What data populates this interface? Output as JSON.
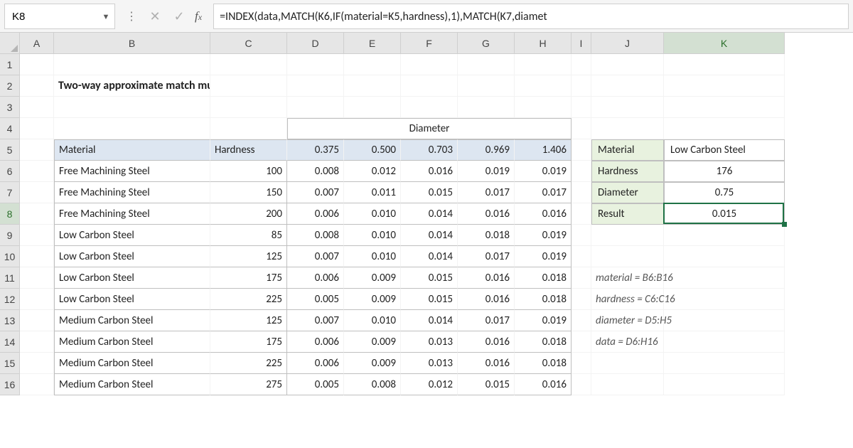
{
  "namebox": "K8",
  "formula": "=INDEX(data,MATCH(K6,IF(material=K5,hardness),1),MATCH(K7,diamet",
  "columns": [
    "A",
    "B",
    "C",
    "D",
    "E",
    "F",
    "G",
    "H",
    "I",
    "J",
    "K"
  ],
  "rows": [
    "1",
    "2",
    "3",
    "4",
    "5",
    "6",
    "7",
    "8",
    "9",
    "10",
    "11",
    "12",
    "13",
    "14",
    "15",
    "16"
  ],
  "active_row": "8",
  "active_col": "K",
  "title": "Two-way approximate match multiple criteria",
  "diam_header": "Diameter",
  "table_headers": {
    "material": "Material",
    "hardness": "Hardness"
  },
  "diameters": [
    "0.375",
    "0.500",
    "0.703",
    "0.969",
    "1.406"
  ],
  "data_rows": [
    {
      "m": "Free Machining Steel",
      "h": "100",
      "v": [
        "0.008",
        "0.012",
        "0.016",
        "0.019",
        "0.019"
      ]
    },
    {
      "m": "Free Machining Steel",
      "h": "150",
      "v": [
        "0.007",
        "0.011",
        "0.015",
        "0.017",
        "0.017"
      ]
    },
    {
      "m": "Free Machining Steel",
      "h": "200",
      "v": [
        "0.006",
        "0.010",
        "0.014",
        "0.016",
        "0.016"
      ]
    },
    {
      "m": "Low Carbon Steel",
      "h": "85",
      "v": [
        "0.008",
        "0.010",
        "0.014",
        "0.018",
        "0.019"
      ]
    },
    {
      "m": "Low Carbon Steel",
      "h": "125",
      "v": [
        "0.007",
        "0.010",
        "0.014",
        "0.017",
        "0.019"
      ]
    },
    {
      "m": "Low Carbon Steel",
      "h": "175",
      "v": [
        "0.006",
        "0.009",
        "0.015",
        "0.016",
        "0.018"
      ]
    },
    {
      "m": "Low Carbon Steel",
      "h": "225",
      "v": [
        "0.005",
        "0.009",
        "0.015",
        "0.016",
        "0.018"
      ]
    },
    {
      "m": "Medium Carbon Steel",
      "h": "125",
      "v": [
        "0.007",
        "0.010",
        "0.014",
        "0.017",
        "0.019"
      ]
    },
    {
      "m": "Medium Carbon Steel",
      "h": "175",
      "v": [
        "0.006",
        "0.009",
        "0.013",
        "0.016",
        "0.018"
      ]
    },
    {
      "m": "Medium Carbon Steel",
      "h": "225",
      "v": [
        "0.006",
        "0.009",
        "0.013",
        "0.016",
        "0.018"
      ]
    },
    {
      "m": "Medium Carbon Steel",
      "h": "275",
      "v": [
        "0.005",
        "0.008",
        "0.012",
        "0.015",
        "0.016"
      ]
    }
  ],
  "lookup": {
    "labels": {
      "material": "Material",
      "hardness": "Hardness",
      "diameter": "Diameter",
      "result": "Result"
    },
    "values": {
      "material": "Low Carbon Steel",
      "hardness": "176",
      "diameter": "0.75",
      "result": "0.015"
    }
  },
  "named_ranges": [
    "material = B6:B16",
    "hardness = C6:C16",
    "diameter = D5:H5",
    "data = D6:H16"
  ],
  "colors": {
    "header_fill": "#dde6f1",
    "lookup_fill": "#e8f2df",
    "selection": "#1f7246",
    "grid_head": "#e6e6e6"
  }
}
